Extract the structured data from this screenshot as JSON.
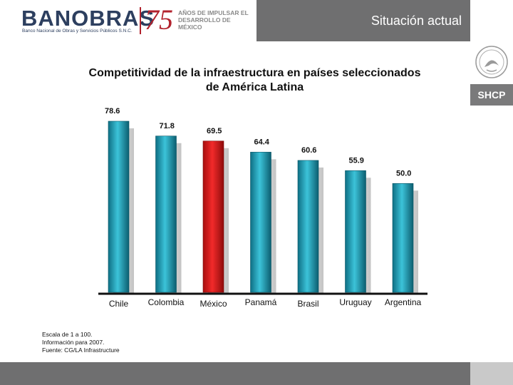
{
  "header": {
    "logo": "BANOBRAS",
    "logo_subtitle": "Banco Nacional de Obras y Servicios Públicos S.N.C.",
    "anniversary_number": "75",
    "anniversary_text": "AÑOS DE IMPULSAR EL DESARROLLO DE MÉXICO",
    "slide_title": "Situación actual"
  },
  "sidebar": {
    "badge": "SHCP",
    "seal_icon": "mexican-coat-of-arms-icon"
  },
  "chart_data": {
    "type": "bar",
    "title": "Competitividad de la infraestructura en países seleccionados de América Latina",
    "categories": [
      "Chile",
      "Colombia",
      "México",
      "Panamá",
      "Brasil",
      "Uruguay",
      "Argentina"
    ],
    "values": [
      78.6,
      71.8,
      69.5,
      64.4,
      60.6,
      55.9,
      50.0
    ],
    "value_labels": [
      "78.6",
      "71.8",
      "69.5",
      "64.4",
      "60.6",
      "55.9",
      "50.0"
    ],
    "highlight_category": "México",
    "bar_color": "#1e9fb8",
    "highlight_color": "#e01a1a",
    "xlabel": "",
    "ylabel": "",
    "ylim": [
      0,
      80
    ],
    "grid": false,
    "legend": "none"
  },
  "notes": {
    "scale": "Escala de 1 a 100.",
    "info": "Información para 2007.",
    "source": "Fuente: CG/LA Infrastructure"
  }
}
